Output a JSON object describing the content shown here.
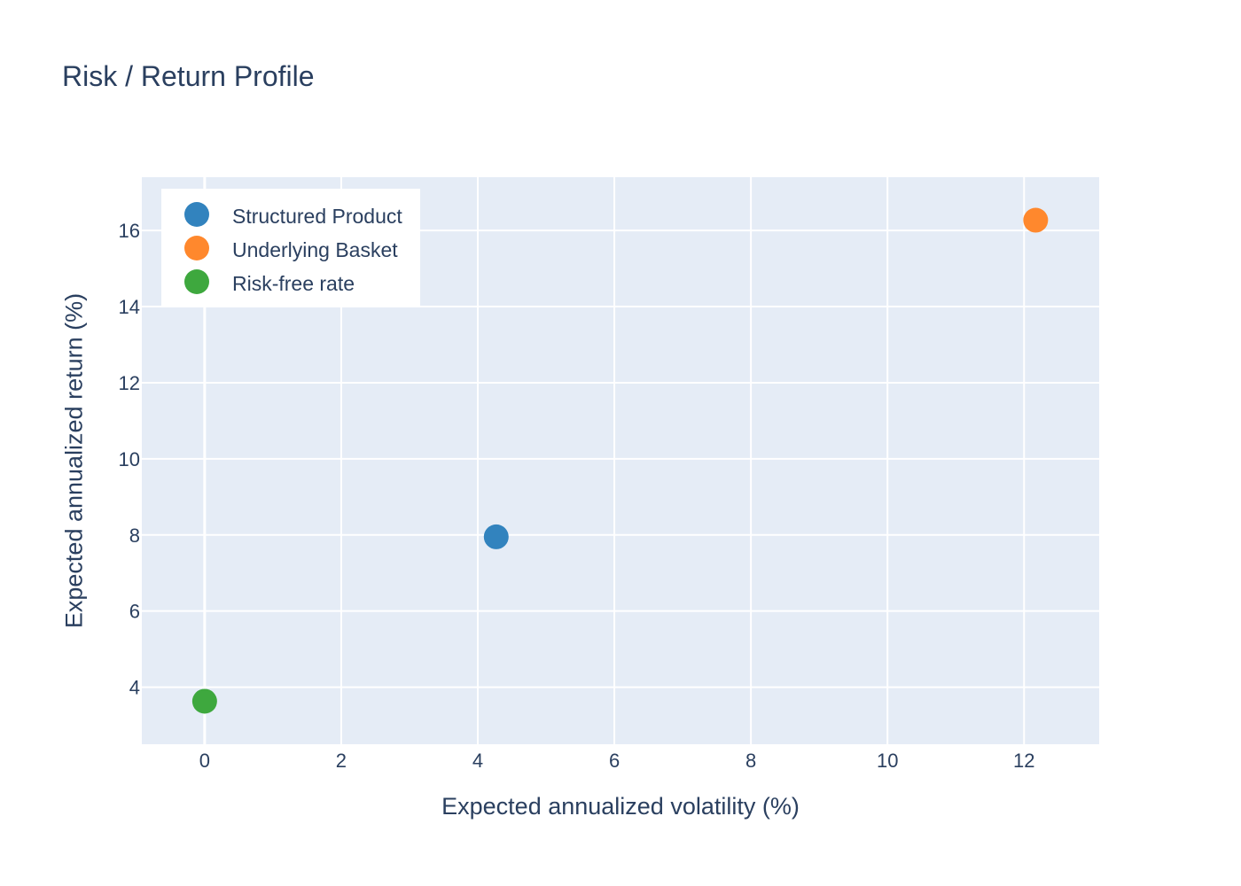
{
  "chart_data": {
    "type": "scatter",
    "title": "Risk / Return Profile",
    "xlabel": "Expected annualized volatility (%)",
    "ylabel": "Expected annualized return (%)",
    "xlim": [
      -0.92,
      13.1
    ],
    "ylim": [
      2.5,
      17.4
    ],
    "xticks": [
      0,
      2,
      4,
      6,
      8,
      10,
      12
    ],
    "yticks": [
      4,
      6,
      8,
      10,
      12,
      14,
      16
    ],
    "grid": true,
    "legend_position": "top-left",
    "series": [
      {
        "name": "Structured Product",
        "color": "#3283be",
        "x": [
          4.27
        ],
        "y": [
          7.95
        ]
      },
      {
        "name": "Underlying Basket",
        "color": "#ff882d",
        "x": [
          12.17
        ],
        "y": [
          16.27
        ]
      },
      {
        "name": "Risk-free rate",
        "color": "#3ea83e",
        "x": [
          0.0
        ],
        "y": [
          3.63
        ]
      }
    ],
    "plot_background": "#e5ecf6",
    "grid_color": "#ffffff"
  }
}
